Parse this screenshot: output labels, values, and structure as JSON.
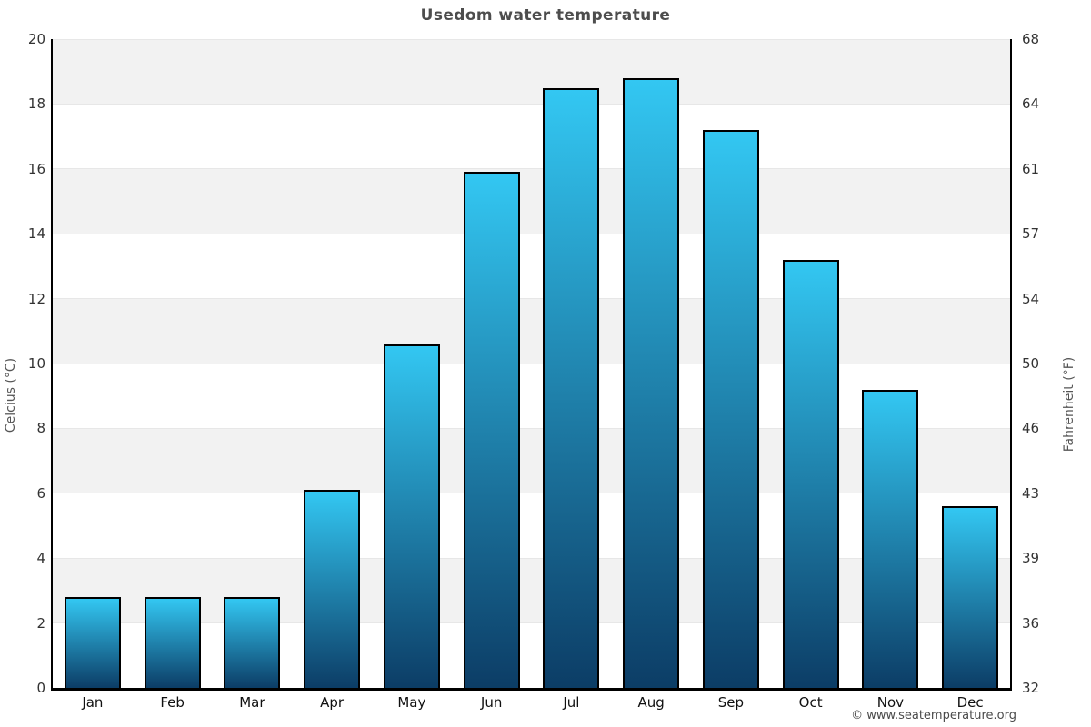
{
  "title": "Usedom water temperature",
  "attribution": "© www.seatemperature.org",
  "chart_data": {
    "type": "bar",
    "title": "Usedom water temperature",
    "categories": [
      "Jan",
      "Feb",
      "Mar",
      "Apr",
      "May",
      "Jun",
      "Jul",
      "Aug",
      "Sep",
      "Oct",
      "Nov",
      "Dec"
    ],
    "values": [
      2.8,
      2.8,
      2.8,
      6.1,
      10.6,
      15.9,
      18.5,
      18.8,
      17.2,
      13.2,
      9.2,
      5.6
    ],
    "series_name": "Water temperature",
    "xlabel": "",
    "ylabel_left": "Celcius (°C)",
    "ylabel_right": "Fahrenheit (°F)",
    "ylim": [
      0,
      20
    ],
    "ytick_step": 2,
    "yticks_celsius": [
      0,
      2,
      4,
      6,
      8,
      10,
      12,
      14,
      16,
      18,
      20
    ],
    "yticks_fahrenheit": [
      32,
      36,
      39,
      43,
      46,
      50,
      54,
      57,
      61,
      64,
      68
    ],
    "legend": "none",
    "grid": "alternating horizontal bands every 2°C",
    "colors": {
      "bar_gradient_top": "#33c7f2",
      "bar_gradient_bottom": "#0c3d66",
      "bar_border": "#000000",
      "band_gray": "#f2f2f2",
      "band_white": "#ffffff",
      "gridline": "#e7e7e7",
      "axis_line": "#000000",
      "title_color": "#4d4d4d",
      "tick_label_color": "#333333",
      "axis_title_color": "#555555",
      "attribution_color": "#4a4a4a"
    }
  }
}
